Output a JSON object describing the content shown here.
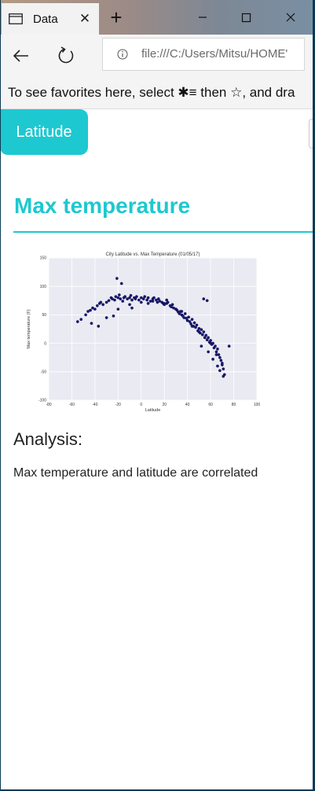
{
  "browser": {
    "tab_title": "Data",
    "address": "file:///C:/Users/Mitsu/HOME'",
    "favorites_hint": "To see favorites here, select  ✱≡  then ☆, and dra"
  },
  "page": {
    "latitude_button": "Latitude",
    "heading": "Max temperature",
    "analysis_heading": "Analysis:",
    "analysis_text": "Max temperature and latitude are correlated",
    "accent_color": "#1ec8d0"
  },
  "chart_data": {
    "type": "scatter",
    "title": "City Latitude vs. Max Temperature (01/05/17)",
    "xlabel": "Latitude",
    "ylabel": "Max temperature (F)",
    "xlim": [
      -80,
      100
    ],
    "ylim": [
      -100,
      150
    ],
    "xticks": [
      -80,
      -60,
      -40,
      -20,
      0,
      20,
      40,
      60,
      80,
      100
    ],
    "yticks": [
      150,
      100,
      50,
      0,
      -50,
      -100
    ],
    "grid": true,
    "point_color": "#191970",
    "x": [
      -55,
      -52,
      -48,
      -46,
      -44,
      -42,
      -40,
      -38,
      -36,
      -35,
      -33,
      -30,
      -28,
      -26,
      -25,
      -23,
      -22,
      -20,
      -19,
      -18,
      -16,
      -15,
      -14,
      -12,
      -10,
      -9,
      -8,
      -6,
      -5,
      -4,
      -2,
      0,
      2,
      3,
      5,
      6,
      8,
      10,
      11,
      13,
      15,
      16,
      18,
      19,
      20,
      22,
      23,
      25,
      26,
      27,
      28,
      30,
      31,
      32,
      33,
      34,
      35,
      36,
      37,
      38,
      39,
      40,
      41,
      42,
      43,
      44,
      45,
      46,
      47,
      48,
      49,
      50,
      51,
      52,
      53,
      54,
      55,
      56,
      57,
      58,
      59,
      60,
      61,
      62,
      63,
      64,
      65,
      66,
      67,
      68,
      69,
      70,
      71,
      72,
      -43,
      -30,
      -20,
      -10,
      0,
      10,
      20,
      30,
      40,
      45,
      50,
      55,
      60,
      65,
      70,
      -37,
      -24,
      -8,
      6,
      14,
      22,
      35,
      44,
      52,
      58,
      62,
      66,
      68,
      71,
      -21,
      -17,
      54,
      57,
      76
    ],
    "y": [
      38,
      42,
      50,
      56,
      58,
      62,
      60,
      66,
      70,
      72,
      68,
      72,
      75,
      80,
      78,
      76,
      82,
      80,
      85,
      78,
      74,
      80,
      82,
      78,
      80,
      84,
      76,
      80,
      78,
      82,
      76,
      80,
      78,
      82,
      76,
      80,
      74,
      78,
      80,
      76,
      78,
      74,
      72,
      70,
      68,
      70,
      72,
      66,
      64,
      68,
      62,
      60,
      58,
      55,
      52,
      56,
      50,
      48,
      45,
      52,
      44,
      40,
      46,
      38,
      34,
      42,
      30,
      36,
      28,
      32,
      22,
      26,
      18,
      24,
      15,
      20,
      10,
      14,
      6,
      10,
      2,
      5,
      -2,
      0,
      -8,
      -5,
      -15,
      -10,
      -20,
      -25,
      -30,
      -38,
      -45,
      -55,
      35,
      45,
      60,
      68,
      72,
      74,
      70,
      60,
      40,
      30,
      20,
      10,
      0,
      -20,
      -35,
      30,
      48,
      62,
      70,
      72,
      76,
      56,
      30,
      -5,
      -15,
      -28,
      -40,
      -48,
      -58,
      114,
      105,
      78,
      75,
      -5
    ]
  }
}
